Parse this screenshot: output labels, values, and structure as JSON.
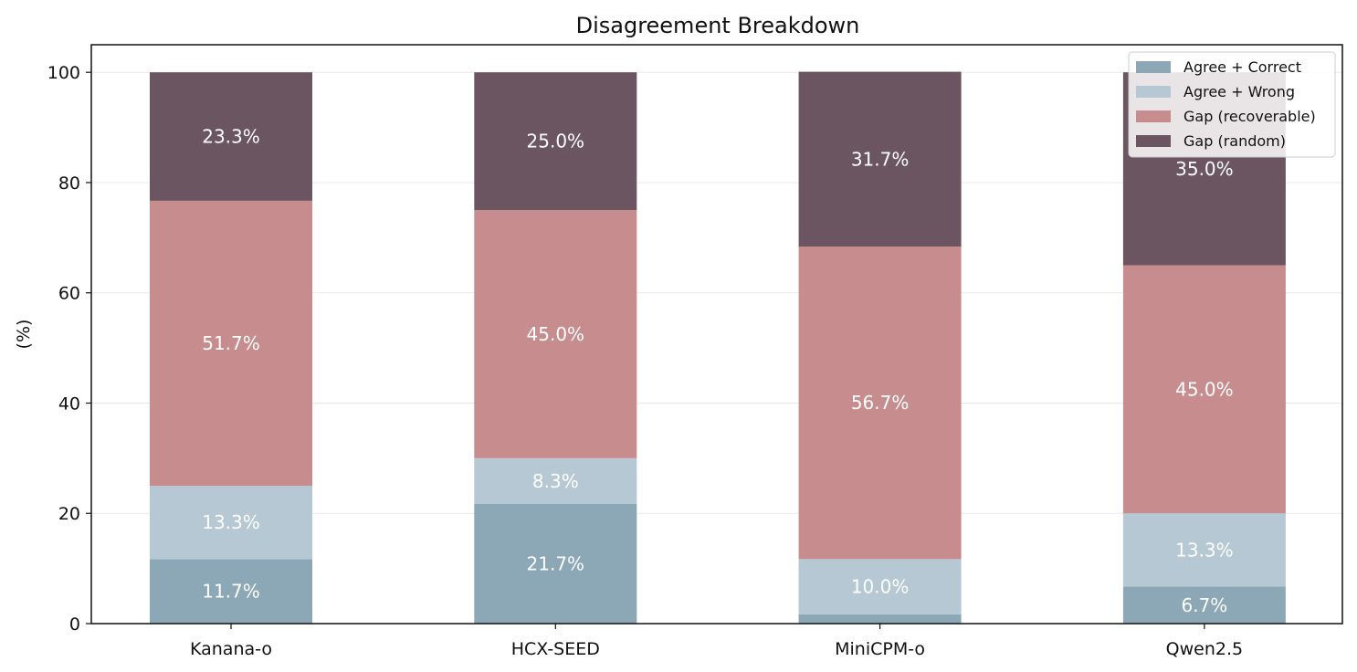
{
  "chart_data": {
    "type": "bar",
    "stacked": true,
    "title": "Disagreement Breakdown",
    "xlabel": "",
    "ylabel": "(%)",
    "ylim": [
      0,
      105
    ],
    "yticks": [
      "0",
      "20",
      "40",
      "60",
      "80",
      "100"
    ],
    "grid": "horizontal",
    "legend_position": "top-right",
    "categories": [
      "Kanana-o",
      "HCX-SEED",
      "MiniCPM-o",
      "Qwen2.5"
    ],
    "series": [
      {
        "name": "Agree + Correct",
        "color": "#8ca7b5",
        "values": [
          11.7,
          21.7,
          1.7,
          6.7
        ],
        "labels": [
          "11.7%",
          "21.7%",
          "",
          "6.7%"
        ]
      },
      {
        "name": "Agree + Wrong",
        "color": "#b5c8d3",
        "values": [
          13.3,
          8.3,
          10.0,
          13.3
        ],
        "labels": [
          "13.3%",
          "8.3%",
          "10.0%",
          "13.3%"
        ]
      },
      {
        "name": "Gap (recoverable)",
        "color": "#c78c8d",
        "values": [
          51.7,
          45.0,
          56.7,
          45.0
        ],
        "labels": [
          "51.7%",
          "45.0%",
          "56.7%",
          "45.0%"
        ]
      },
      {
        "name": "Gap (random)",
        "color": "#6b5561",
        "values": [
          23.3,
          25.0,
          31.7,
          35.0
        ],
        "labels": [
          "23.3%",
          "25.0%",
          "31.7%",
          "35.0%"
        ]
      }
    ]
  }
}
